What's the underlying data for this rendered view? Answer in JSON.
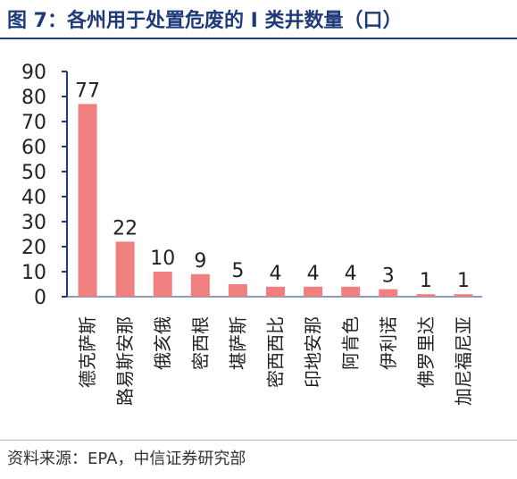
{
  "title": "图 7：各州用于处置危废的 I 类井数量（口）",
  "source": "资料来源：EPA，中信证券研究部",
  "colors": {
    "bar": "#f08080",
    "axis": "#1e3a78",
    "title": "#1e3a78",
    "text": "#222222"
  },
  "chart_data": {
    "type": "bar",
    "title": "图 7：各州用于处置危废的 I 类井数量（口）",
    "categories": [
      "德克萨斯",
      "路易斯安那",
      "俄亥俄",
      "密西根",
      "堪萨斯",
      "密西西比",
      "印地安那",
      "阿肯色",
      "伊利诺",
      "佛罗里达",
      "加尼福尼亚"
    ],
    "values": [
      77,
      22,
      10,
      9,
      5,
      4,
      4,
      4,
      3,
      1,
      1
    ],
    "ylim": [
      0,
      90
    ],
    "yticks": [
      0,
      10,
      20,
      30,
      40,
      50,
      60,
      70,
      80,
      90
    ],
    "xlabel": "",
    "ylabel": "",
    "grid": false,
    "data_labels": true
  }
}
